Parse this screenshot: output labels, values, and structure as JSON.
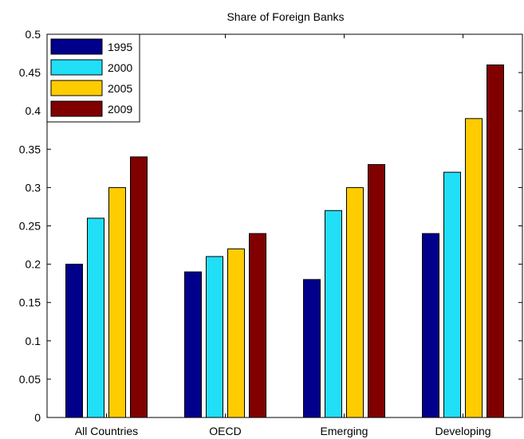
{
  "chart_data": {
    "type": "bar",
    "title": "Share of Foreign Banks",
    "xlabel": "",
    "ylabel": "",
    "categories": [
      "All Countries",
      "OECD",
      "Emerging",
      "Developing"
    ],
    "series": [
      {
        "name": "1995",
        "color": "#00008B",
        "values": [
          0.2,
          0.19,
          0.18,
          0.24
        ]
      },
      {
        "name": "2000",
        "color": "#20DFF7",
        "values": [
          0.26,
          0.21,
          0.27,
          0.32
        ]
      },
      {
        "name": "2005",
        "color": "#FFCC00",
        "values": [
          0.3,
          0.22,
          0.3,
          0.39
        ]
      },
      {
        "name": "2009",
        "color": "#800000",
        "values": [
          0.34,
          0.24,
          0.33,
          0.46
        ]
      }
    ],
    "ylim": [
      0,
      0.5
    ],
    "yticks": [
      "0",
      "0.05",
      "0.1",
      "0.15",
      "0.2",
      "0.25",
      "0.3",
      "0.35",
      "0.4",
      "0.45",
      "0.5"
    ],
    "grid": false,
    "legend_position": "top-left"
  }
}
